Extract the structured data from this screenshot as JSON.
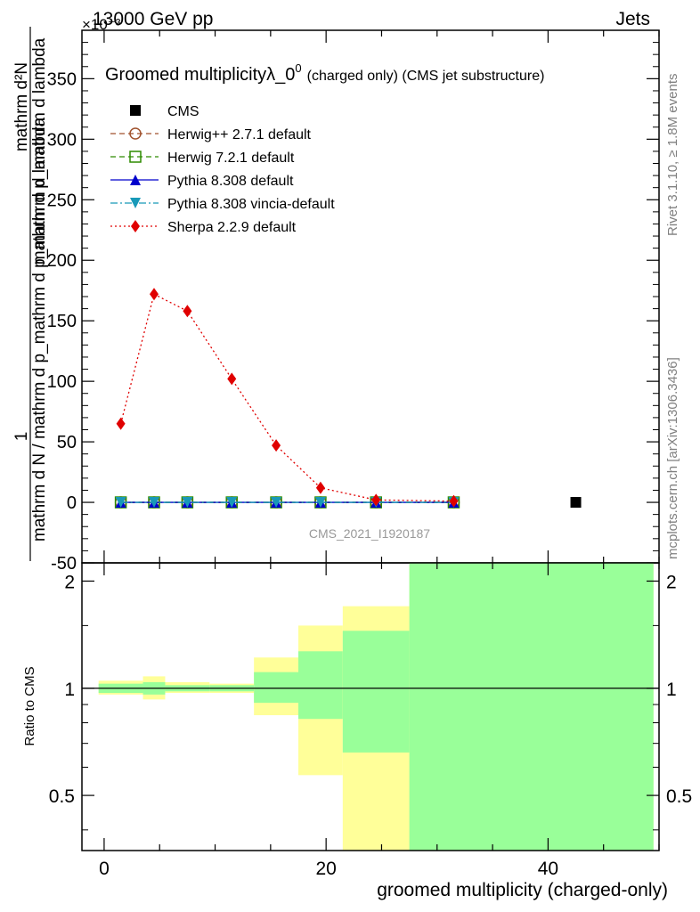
{
  "header": {
    "energy": "13000 GeV pp",
    "process": "Jets",
    "exponent": "×10⁻³"
  },
  "title": {
    "main": "Groomed multiplicity",
    "lambda_label": "λ_0",
    "superscript": "0",
    "suffix": "(charged only) (CMS jet substructure)"
  },
  "side_labels": {
    "rivet": "Rivet 3.1.10, ≥ 1.8M events",
    "mcplots": "mcplots.cern.ch [arXiv:1306.3436]"
  },
  "watermark": "CMS_2021_I1920187",
  "ylabel_main": {
    "line1": "mathrm d²N",
    "line2": "mathrm d p_mathrm d lambda",
    "line3": "1",
    "line4": "mathrm d N / mathrm d p_mathrm d p_mathrm d lambda"
  },
  "ylabel_ratio": "Ratio to CMS",
  "xlabel": "groomed multiplicity (charged-only)",
  "legend": [
    {
      "label": "CMS",
      "color": "#000000",
      "marker": "square-filled",
      "line": "none"
    },
    {
      "label": "Herwig++ 2.7.1 default",
      "color": "#a0522d",
      "marker": "circle-open",
      "line": "dashed"
    },
    {
      "label": "Herwig 7.2.1 default",
      "color": "#2e8b00",
      "marker": "square-open",
      "line": "dashed"
    },
    {
      "label": "Pythia 8.308 default",
      "color": "#0000cc",
      "marker": "triangle-up",
      "line": "solid"
    },
    {
      "label": "Pythia 8.308 vincia-default",
      "color": "#1899b8",
      "marker": "triangle-down",
      "line": "dashdot"
    },
    {
      "label": "Sherpa 2.2.9 default",
      "color": "#e00000",
      "marker": "diamond",
      "line": "dotted"
    }
  ],
  "chart_data": [
    {
      "type": "line",
      "xlim": [
        -2,
        50
      ],
      "ylim": [
        -50,
        390
      ],
      "yticks": [
        -50,
        0,
        50,
        100,
        150,
        200,
        250,
        300,
        350
      ],
      "x": [
        1.5,
        4.5,
        7.5,
        11.5,
        15.5,
        19.5,
        24.5,
        31.5
      ],
      "cms_points": [
        {
          "x": 42.5,
          "y": 0
        }
      ],
      "series": [
        {
          "name": "Herwig++ 2.7.1 default",
          "y": [
            0,
            0,
            0,
            0,
            0,
            0,
            0,
            0
          ]
        },
        {
          "name": "Herwig 7.2.1 default",
          "y": [
            0,
            0,
            0,
            0,
            0,
            0,
            0,
            0
          ]
        },
        {
          "name": "Pythia 8.308 default",
          "y": [
            0,
            0,
            0,
            0,
            0,
            0,
            0,
            0
          ]
        },
        {
          "name": "Pythia 8.308 vincia-default",
          "y": [
            0,
            0,
            0,
            0,
            0,
            0,
            0,
            0
          ]
        },
        {
          "name": "Sherpa 2.2.9 default",
          "y": [
            65,
            172,
            158,
            102,
            47,
            12,
            2,
            1
          ]
        }
      ]
    },
    {
      "type": "area",
      "xlim": [
        -2,
        50
      ],
      "ylim": [
        0.35,
        2.25
      ],
      "yticks": [
        0.5,
        1,
        2
      ],
      "xticks": [
        0,
        20,
        40
      ],
      "reference": 1,
      "bins": [
        {
          "x0": -0.5,
          "x1": 3.5,
          "yellow": [
            0.96,
            1.05
          ],
          "green": [
            0.97,
            1.03
          ]
        },
        {
          "x0": 3.5,
          "x1": 5.5,
          "yellow": [
            0.93,
            1.08
          ],
          "green": [
            0.96,
            1.04
          ]
        },
        {
          "x0": 5.5,
          "x1": 9.5,
          "yellow": [
            0.97,
            1.04
          ],
          "green": [
            0.98,
            1.02
          ]
        },
        {
          "x0": 9.5,
          "x1": 13.5,
          "yellow": [
            0.97,
            1.03
          ],
          "green": [
            0.98,
            1.02
          ]
        },
        {
          "x0": 13.5,
          "x1": 17.5,
          "yellow": [
            0.84,
            1.22
          ],
          "green": [
            0.91,
            1.11
          ]
        },
        {
          "x0": 17.5,
          "x1": 21.5,
          "yellow": [
            0.57,
            1.5
          ],
          "green": [
            0.82,
            1.27
          ]
        },
        {
          "x0": 21.5,
          "x1": 27.5,
          "yellow": [
            0.35,
            1.7
          ],
          "green": [
            0.66,
            1.45
          ]
        },
        {
          "x0": 27.5,
          "x1": 49.5,
          "yellow": [
            0.35,
            2.25
          ],
          "green": [
            0.35,
            2.25
          ]
        }
      ]
    }
  ]
}
